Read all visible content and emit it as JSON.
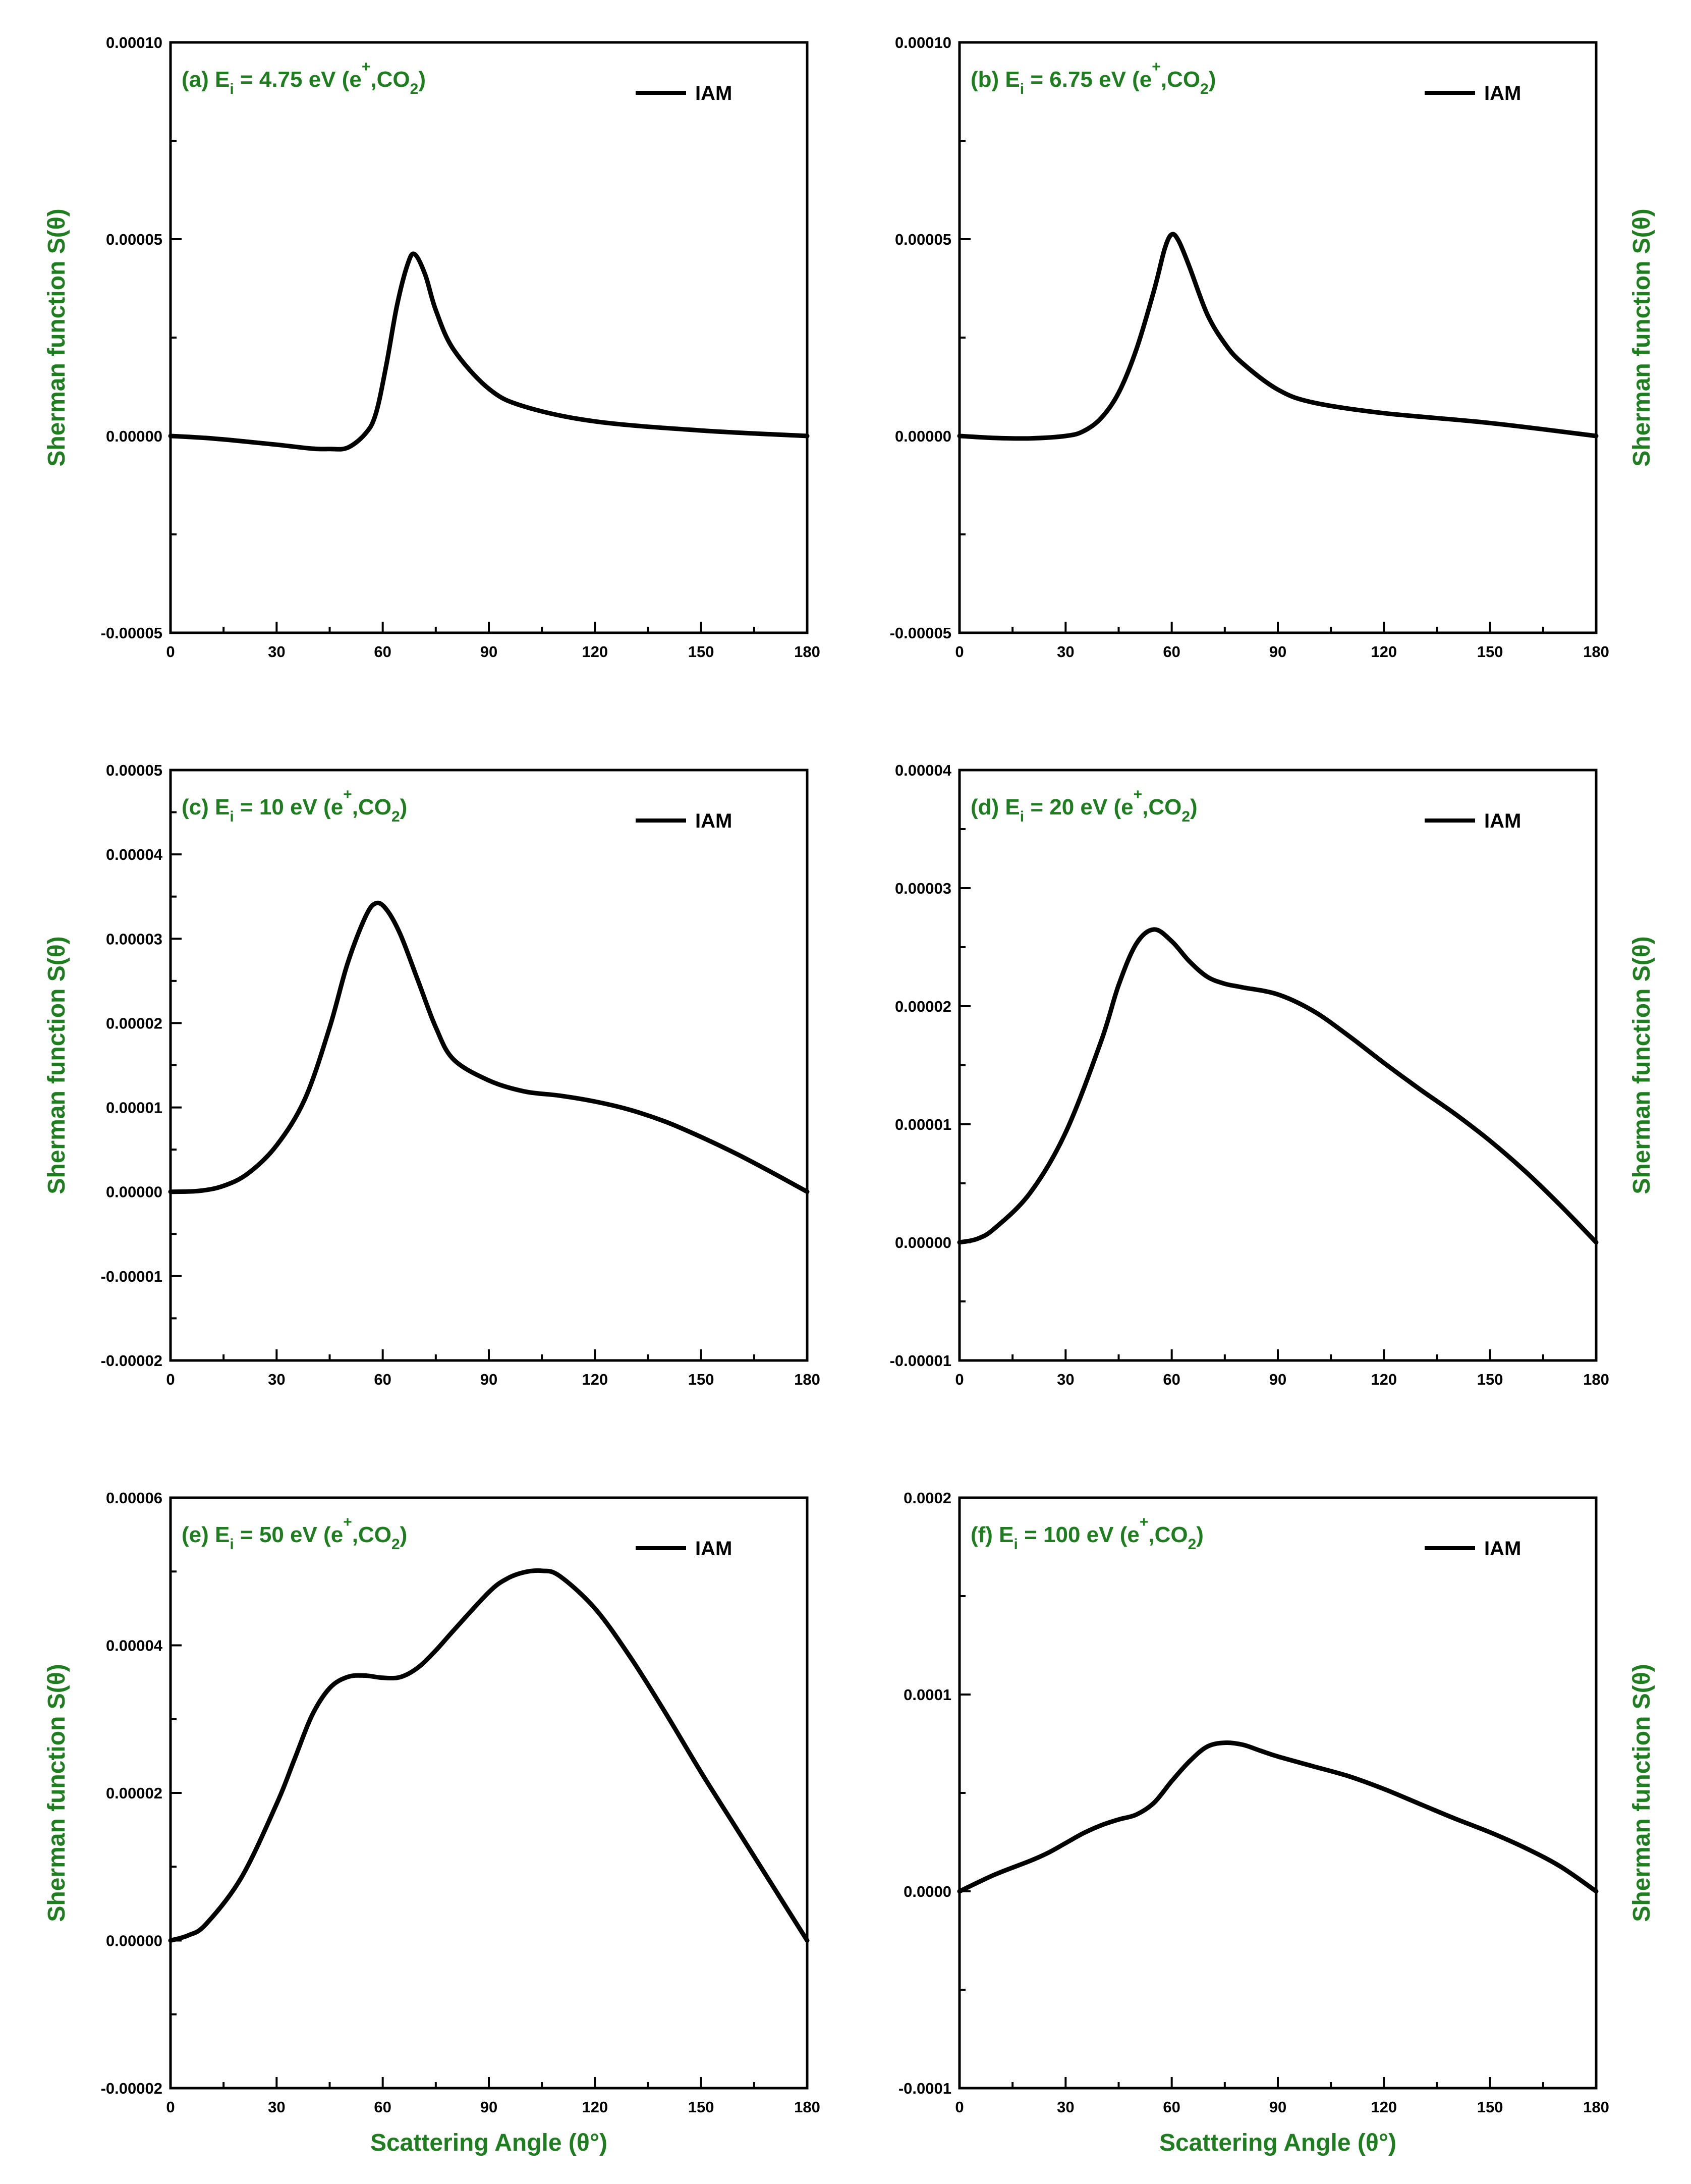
{
  "chart_data": [
    {
      "id": "a",
      "type": "line",
      "title": {
        "prefix": "(a) E",
        "sub": "i",
        "mid": " = 4.75 eV (e",
        "sup": "+",
        "mid2": ",CO",
        "sub2": "2",
        "suffix": ")"
      },
      "xlabel": "",
      "ylabel": "Sherman function S(θ)",
      "ylabel_side": "left",
      "xlim": [
        0,
        180
      ],
      "ylim": [
        -5e-05,
        0.0001
      ],
      "xticks": [
        "0",
        "30",
        "60",
        "90",
        "120",
        "150",
        "180"
      ],
      "yticks": [
        "-0.00005",
        "0.00000",
        "0.00005",
        "0.00010"
      ],
      "legend": "IAM",
      "series": [
        {
          "name": "IAM",
          "x": [
            0,
            10,
            20,
            30,
            40,
            45,
            50,
            55,
            58,
            61,
            64,
            67,
            69,
            72,
            75,
            80,
            90,
            100,
            120,
            150,
            180
          ],
          "y": [
            0.0,
            -5e-07,
            -1.3e-06,
            -2.2e-06,
            -3.2e-06,
            -3.3e-06,
            -3e-06,
            5e-07,
            5.5e-06,
            1.8e-05,
            3.3e-05,
            4.35e-05,
            4.62e-05,
            4.1e-05,
            3.2e-05,
            2.2e-05,
            1.2e-05,
            7.5e-06,
            3.7e-06,
            1.4e-06,
            0.0
          ]
        }
      ]
    },
    {
      "id": "b",
      "type": "line",
      "title": {
        "prefix": "(b) E",
        "sub": "i",
        "mid": " = 6.75 eV (e",
        "sup": "+",
        "mid2": ",CO",
        "sub2": "2",
        "suffix": ")"
      },
      "xlabel": "",
      "ylabel": "Sherman function S(θ)",
      "ylabel_side": "right",
      "xlim": [
        0,
        180
      ],
      "ylim": [
        -5e-05,
        0.0001
      ],
      "xticks": [
        "0",
        "30",
        "60",
        "90",
        "120",
        "150",
        "180"
      ],
      "yticks": [
        "-0.00005",
        "0.00000",
        "0.00005",
        "0.00010"
      ],
      "legend": "IAM",
      "series": [
        {
          "name": "IAM",
          "x": [
            0,
            10,
            20,
            30,
            35,
            40,
            45,
            50,
            55,
            58,
            60,
            62,
            65,
            70,
            75,
            80,
            90,
            100,
            120,
            150,
            180
          ],
          "y": [
            0.0,
            -5e-07,
            -6e-07,
            0.0,
            1.2e-06,
            4.5e-06,
            1.1e-05,
            2.2e-05,
            3.7e-05,
            4.75e-05,
            5.12e-05,
            4.95e-05,
            4.3e-05,
            3.1e-05,
            2.35e-05,
            1.85e-05,
            1.18e-05,
            8.5e-06,
            5.8e-06,
            3.3e-06,
            0.0
          ]
        }
      ]
    },
    {
      "id": "c",
      "type": "line",
      "title": {
        "prefix": "(c) E",
        "sub": "i",
        "mid": " = 10 eV (e",
        "sup": "+",
        "mid2": ",CO",
        "sub2": "2",
        "suffix": ")"
      },
      "xlabel": "",
      "ylabel": "Sherman function S(θ)",
      "ylabel_side": "left",
      "xlim": [
        0,
        180
      ],
      "ylim": [
        -2e-05,
        5e-05
      ],
      "xticks": [
        "0",
        "30",
        "60",
        "90",
        "120",
        "150",
        "180"
      ],
      "yticks": [
        "-0.00002",
        "-0.00001",
        "0.00000",
        "0.00001",
        "0.00002",
        "0.00003",
        "0.00004",
        "0.00005"
      ],
      "legend": "IAM",
      "series": [
        {
          "name": "IAM",
          "x": [
            0,
            8,
            15,
            22,
            30,
            38,
            45,
            50,
            55,
            58,
            61,
            65,
            70,
            75,
            80,
            90,
            100,
            110,
            120,
            130,
            140,
            150,
            160,
            170,
            180
          ],
          "y": [
            0.0,
            1e-07,
            7e-07,
            2.2e-06,
            5.5e-06,
            1.1e-05,
            1.95e-05,
            2.7e-05,
            3.25e-05,
            3.42e-05,
            3.35e-05,
            3.05e-05,
            2.5e-05,
            1.95e-05,
            1.57e-05,
            1.32e-05,
            1.19e-05,
            1.14e-05,
            1.07e-05,
            9.7e-06,
            8.3e-06,
            6.5e-06,
            4.5e-06,
            2.3e-06,
            0.0
          ]
        }
      ]
    },
    {
      "id": "d",
      "type": "line",
      "title": {
        "prefix": "(d) E",
        "sub": "i",
        "mid": " = 20 eV (e",
        "sup": "+",
        "mid2": ",CO",
        "sub2": "2",
        "suffix": ")"
      },
      "xlabel": "",
      "ylabel": "Sherman function S(θ)",
      "ylabel_side": "right",
      "xlim": [
        0,
        180
      ],
      "ylim": [
        -1e-05,
        4e-05
      ],
      "xticks": [
        "0",
        "30",
        "60",
        "90",
        "120",
        "150",
        "180"
      ],
      "yticks": [
        "-0.00001",
        "0.00000",
        "0.00001",
        "0.00002",
        "0.00003",
        "0.00004"
      ],
      "legend": "IAM",
      "series": [
        {
          "name": "IAM",
          "x": [
            0,
            5,
            10,
            20,
            30,
            40,
            45,
            50,
            55,
            60,
            65,
            70,
            75,
            80,
            90,
            100,
            110,
            120,
            130,
            140,
            150,
            160,
            170,
            180
          ],
          "y": [
            0.0,
            3e-07,
            1.2e-06,
            4.2e-06,
            9.3e-06,
            1.7e-05,
            2.18e-05,
            2.53e-05,
            2.65e-05,
            2.55e-05,
            2.38e-05,
            2.25e-05,
            2.19e-05,
            2.16e-05,
            2.1e-05,
            1.96e-05,
            1.75e-05,
            1.52e-05,
            1.3e-05,
            1.09e-05,
            8.6e-06,
            6e-06,
            3.1e-06,
            0.0
          ]
        }
      ]
    },
    {
      "id": "e",
      "type": "line",
      "title": {
        "prefix": "(e) E",
        "sub": "i",
        "mid": " = 50 eV (e",
        "sup": "+",
        "mid2": ",CO",
        "sub2": "2",
        "suffix": ")"
      },
      "xlabel": "Scattering Angle (θ°)",
      "ylabel": "Sherman function S(θ)",
      "ylabel_side": "left",
      "xlim": [
        0,
        180
      ],
      "ylim": [
        -2e-05,
        6e-05
      ],
      "xticks": [
        "0",
        "30",
        "60",
        "90",
        "120",
        "150",
        "180"
      ],
      "yticks": [
        "-0.00002",
        "0.00000",
        "0.00002",
        "0.00004",
        "0.00006"
      ],
      "legend": "IAM",
      "series": [
        {
          "name": "IAM",
          "x": [
            0,
            5,
            10,
            20,
            30,
            35,
            40,
            45,
            50,
            55,
            60,
            65,
            70,
            75,
            80,
            90,
            95,
            100,
            105,
            110,
            120,
            130,
            140,
            150,
            160,
            170,
            180
          ],
          "y": [
            0.0,
            7e-07,
            2.2e-06,
            8.5e-06,
            1.85e-05,
            2.45e-05,
            3.05e-05,
            3.42e-05,
            3.57e-05,
            3.59e-05,
            3.56e-05,
            3.57e-05,
            3.7e-05,
            3.93e-05,
            4.2e-05,
            4.72e-05,
            4.9e-05,
            4.99e-05,
            5.01e-05,
            4.94e-05,
            4.5e-05,
            3.84e-05,
            3.08e-05,
            2.28e-05,
            1.52e-05,
            7.6e-06,
            0.0
          ]
        }
      ]
    },
    {
      "id": "f",
      "type": "line",
      "title": {
        "prefix": "(f) E",
        "sub": "i",
        "mid": " = 100 eV (e",
        "sup": "+",
        "mid2": ",CO",
        "sub2": "2",
        "suffix": ")"
      },
      "xlabel": "Scattering Angle (θ°)",
      "ylabel": "Sherman function S(θ)",
      "ylabel_side": "right",
      "xlim": [
        0,
        180
      ],
      "ylim": [
        -0.0001,
        0.0002
      ],
      "xticks": [
        "0",
        "30",
        "60",
        "90",
        "120",
        "150",
        "180"
      ],
      "yticks": [
        "-0.0001",
        "0.0000",
        "0.0001",
        "0.0002"
      ],
      "legend": "IAM",
      "series": [
        {
          "name": "IAM",
          "x": [
            0,
            10,
            20,
            25,
            30,
            35,
            40,
            45,
            50,
            55,
            60,
            65,
            70,
            75,
            80,
            85,
            90,
            100,
            110,
            120,
            130,
            140,
            150,
            160,
            170,
            180
          ],
          "y": [
            0.0,
            8.5e-06,
            1.55e-05,
            1.95e-05,
            2.45e-05,
            2.95e-05,
            3.35e-05,
            3.65e-05,
            3.9e-05,
            4.5e-05,
            5.6e-05,
            6.6e-05,
            7.35e-05,
            7.55e-05,
            7.45e-05,
            7.15e-05,
            6.85e-05,
            6.35e-05,
            5.85e-05,
            5.2e-05,
            4.45e-05,
            3.7e-05,
            3e-05,
            2.2e-05,
            1.25e-05,
            0.0
          ]
        }
      ]
    }
  ]
}
